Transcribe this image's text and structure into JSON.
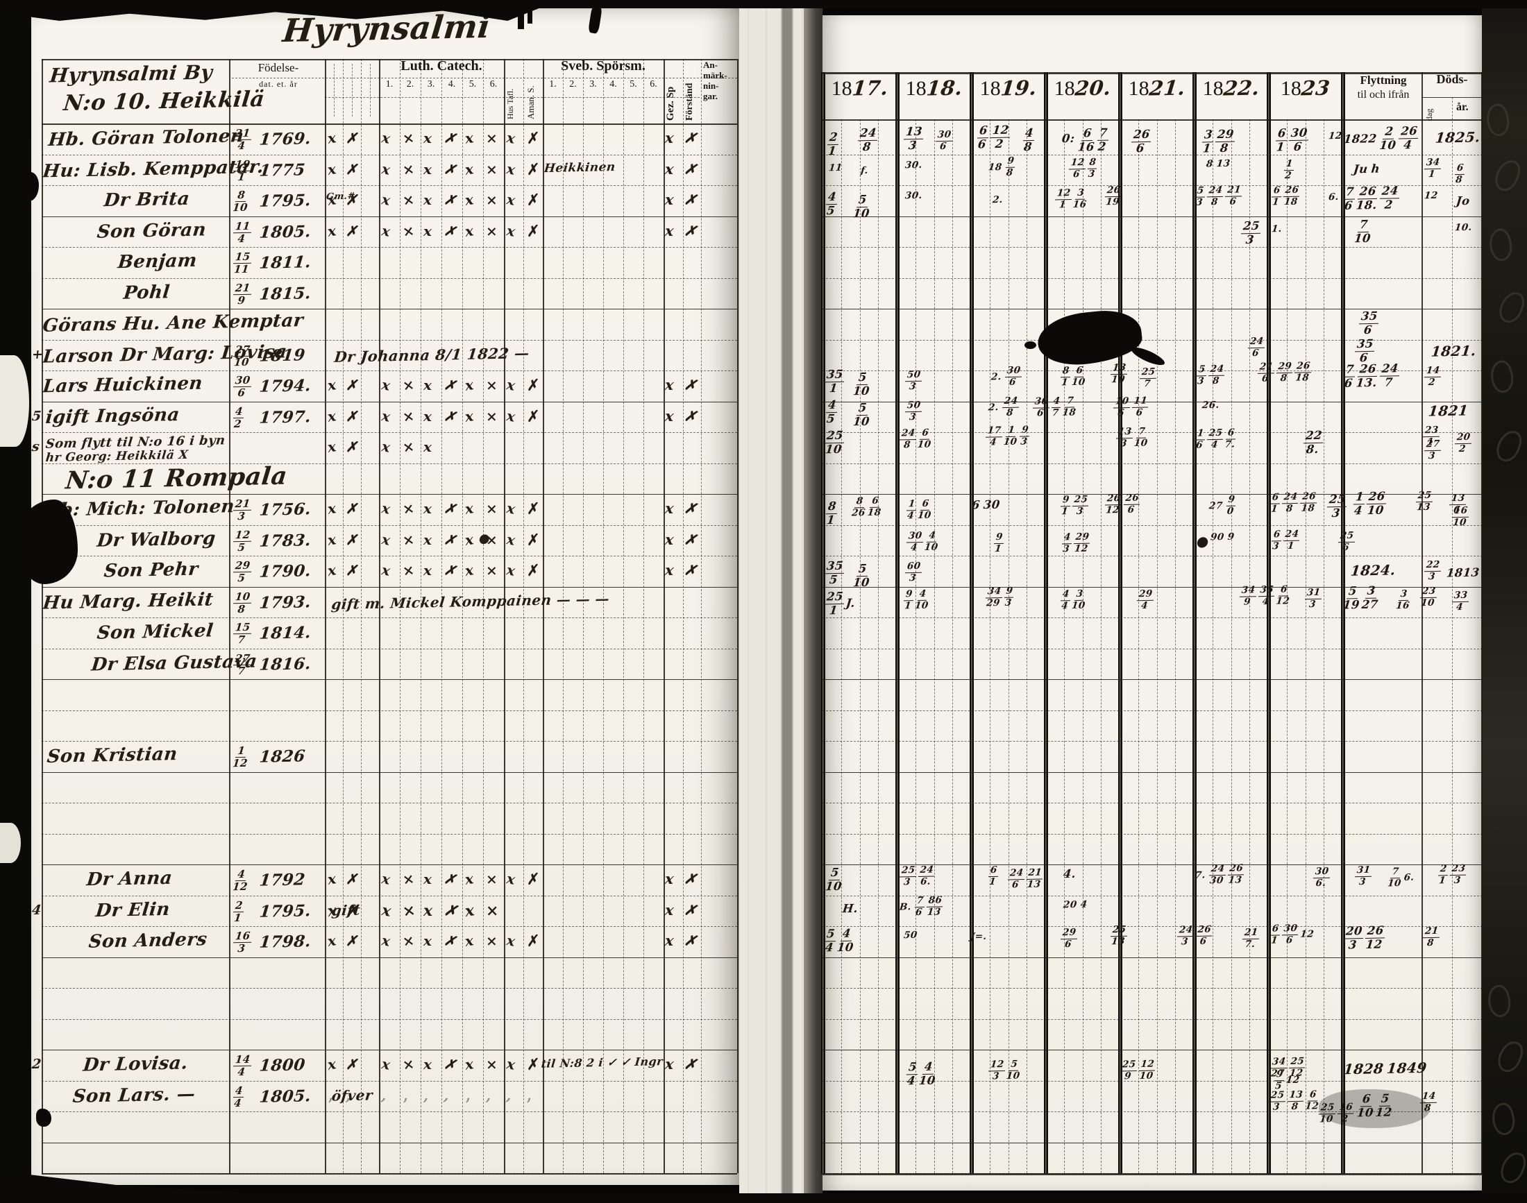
{
  "title": {
    "text": "Hyrynsalmi"
  },
  "left_page": {
    "village_line1": "Hyrynsalmi By",
    "village_line2": "N:o 10. Heikkilä",
    "headers": {
      "birth_line1": "Födelse-",
      "birth_line2": "dat. et. år",
      "luth": "Luth. Catech.",
      "luth_nums": [
        "1.",
        "2.",
        "3.",
        "4.",
        "5.",
        "6."
      ],
      "hus_tafl": "Hus Tafl.",
      "aman": "Aman. S.",
      "sveb": "Sveb. Spörsm.",
      "sveb_nums": [
        "1.",
        "2.",
        "3.",
        "4.",
        "5.",
        "6."
      ],
      "gez": "Gez. Sp",
      "forstand": "Förständ",
      "anm": [
        "An-",
        "märk-",
        "nin-",
        "gar."
      ]
    },
    "rows": [
      {
        "i": 0,
        "ix": 70,
        "name": "Hb. Göran Tolonen",
        "bt": "21",
        "bb": "4",
        "by": "1769.",
        "ck": 10,
        "gz": 1,
        "fs": 1
      },
      {
        "i": 1,
        "ix": 62,
        "name": "Hu: Lisb. Kemppatar.",
        "bt": "19",
        "bb": "1",
        "by": "1775",
        "ck": 10,
        "gz": 1,
        "fs": 1,
        "note": "Heikkinen",
        "nx": 784,
        "nf": 17
      },
      {
        "i": 2,
        "ix": 150,
        "name": "Dr Brita",
        "bt": "8",
        "bb": "10",
        "by": "1795.",
        "ck": 10,
        "gz": 1,
        "fs": 1,
        "note": "Gm.#",
        "nx": 470,
        "nf": 13
      },
      {
        "i": 3,
        "ix": 140,
        "name": "Son Göran",
        "bt": "11",
        "bb": "4",
        "by": "1805.",
        "ck": 10,
        "gz": 1,
        "fs": 1
      },
      {
        "i": 4,
        "ix": 170,
        "name": "Benjam",
        "bt": "15",
        "bb": "11",
        "by": "1811."
      },
      {
        "i": 5,
        "ix": 178,
        "name": "Pohl",
        "bt": "21",
        "bb": "9",
        "by": "1815."
      },
      {
        "i": 6,
        "ix": 62,
        "name": "Görans Hu. Ane Kemptar"
      },
      {
        "i": 7,
        "ix": 62,
        "m": "+",
        "name": "Larson Dr Marg: Lovisa",
        "bt": "27",
        "bb": "10",
        "by": "1819",
        "note": "Dr Johanna 8/1 1822 —",
        "nx": 482,
        "nf": 21
      },
      {
        "i": 8,
        "ix": 62,
        "name": "Lars Huickinen",
        "bt": "30",
        "bb": "6",
        "by": "1794.",
        "ck": 10,
        "gz": 1,
        "fs": 1
      },
      {
        "i": 9,
        "ix": 66,
        "m": "5",
        "name": "igift Ingsöna",
        "bt": "4",
        "bb": "2",
        "by": "1797.",
        "ck": 10,
        "gz": 1,
        "fs": 1
      },
      {
        "i": 10,
        "ix": 66,
        "m": "s",
        "name": "Som flytt til N:o 16 i byn",
        "name2": "hr Georg: Heikkilä X",
        "ck": 5,
        "small": 1
      },
      {
        "i": 11,
        "ix": 95,
        "header": "N:o 11 Rompala"
      },
      {
        "i": 12,
        "ix": 62,
        "name": "Hb: Mich: Tolonen",
        "bt": "21",
        "bb": "3",
        "by": "1756.",
        "ck": 10,
        "gz": 1,
        "fs": 1
      },
      {
        "i": 13,
        "ix": 140,
        "name": "Dr Walborg",
        "bt": "12",
        "bb": "5",
        "by": "1783.",
        "ck": 10,
        "gz": 1,
        "fs": 1,
        "note": "●",
        "nx": 690,
        "nf": 18
      },
      {
        "i": 14,
        "ix": 150,
        "m": "+",
        "name": "Son Pehr",
        "bt": "29",
        "bb": "5",
        "by": "1790.",
        "ck": 10,
        "gz": 1,
        "fs": 1
      },
      {
        "i": 15,
        "ix": 62,
        "name": "Hu Marg. Heikit",
        "bt": "10",
        "bb": "8",
        "by": "1793.",
        "note": "gift m. Mickel Komppainen — — —",
        "nx": 478,
        "nf": 20
      },
      {
        "i": 16,
        "ix": 140,
        "name": "Son Mickel",
        "bt": "15",
        "bb": "7",
        "by": "1814."
      },
      {
        "i": 17,
        "ix": 132,
        "name": "Dr Elsa Gustava",
        "bt": "27",
        "bb": "7",
        "by": "1816."
      },
      {
        "i": 20,
        "ix": 68,
        "name": "Son Kristian",
        "bt": "1",
        "bb": "12",
        "by": "1826"
      },
      {
        "i": 24,
        "ix": 125,
        "name": "Dr Anna",
        "bt": "4",
        "bb": "12",
        "by": "1792",
        "ck": 10,
        "gz": 1,
        "fs": 1
      },
      {
        "i": 25,
        "ix": 138,
        "m": "4",
        "name": "Dr Elin",
        "bt": "2",
        "bb": "1",
        "by": "1795.",
        "note": "gift",
        "nx": 478,
        "nf": 20,
        "ck": 8,
        "bold": 1,
        "gz": 1,
        "fs": 1
      },
      {
        "i": 26,
        "ix": 128,
        "name": "Son Anders",
        "bt": "16",
        "bb": "3",
        "by": "1798.",
        "ck": 10,
        "gz": 1,
        "fs": 1
      },
      {
        "i": 30,
        "ix": 120,
        "m": "2",
        "name": "Dr Lovisa.",
        "bt": "14",
        "bb": "4",
        "by": "1800",
        "ck": 10,
        "gz": 1,
        "fs": 1,
        "note": "til N:8 2 i ✓ ✓ Ingr",
        "nx": 780,
        "nf": 16
      },
      {
        "i": 31,
        "ix": 105,
        "name": "Son Lars. —",
        "bt": "4",
        "bb": "4",
        "by": "1805.",
        "note": "öfver",
        "nx": 478,
        "nf": 20,
        "ck": 10,
        "faint": 1
      }
    ]
  },
  "right_page": {
    "year_prefix": "18",
    "years": [
      "17.",
      "18.",
      "19.",
      "20.",
      "21.",
      "22.",
      "23"
    ],
    "flyttning_line1": "Flyttning",
    "flyttning_line2": "til och ifrån",
    "dods_title": "Döds-",
    "dods_dag": "dag",
    "dods_ar": "år.",
    "entries": [
      [
        "2/1",
        1192,
        190
      ],
      [
        "24/8",
        1236,
        184
      ],
      [
        "13/3",
        1302,
        182
      ],
      [
        "30/6",
        1348,
        188,
        "s"
      ],
      [
        "6/6 12/2",
        1408,
        180
      ],
      [
        "4/8",
        1474,
        184
      ],
      [
        "0:",
        1530,
        190
      ],
      [
        "6/16 7/2",
        1554,
        184
      ],
      [
        "26/6",
        1630,
        186
      ],
      [
        "3/1 29/8",
        1732,
        186
      ],
      [
        "6/1 30/6",
        1838,
        184
      ],
      [
        "12",
        1914,
        188,
        "s"
      ],
      [
        "1822 2/10 26/4",
        1936,
        182
      ],
      [
        "1825.",
        2068,
        186,
        "b"
      ],
      [
        "11",
        1194,
        234,
        "s"
      ],
      [
        "f.",
        1240,
        238,
        "s"
      ],
      [
        "30.",
        1304,
        230,
        "s"
      ],
      [
        "18 9/8",
        1424,
        226,
        "s"
      ],
      [
        "12/6 8/3",
        1540,
        228,
        "s"
      ],
      [
        "8 13",
        1738,
        228,
        "s"
      ],
      [
        "1/2",
        1850,
        230,
        "s"
      ],
      [
        "Ju h",
        1950,
        234
      ],
      [
        "34/1",
        2052,
        228,
        "s"
      ],
      [
        "6/8",
        2096,
        236,
        "s"
      ],
      [
        "4/5",
        1190,
        276
      ],
      [
        "5/10",
        1230,
        280
      ],
      [
        "30.",
        1304,
        274,
        "s"
      ],
      [
        "2.",
        1430,
        280,
        "s"
      ],
      [
        "12/1 3/16",
        1520,
        272,
        "s"
      ],
      [
        "26/19",
        1592,
        268,
        "s"
      ],
      [
        "5/3 24/8 21/6",
        1722,
        268,
        "s"
      ],
      [
        "6/1 26/18",
        1832,
        268,
        "s"
      ],
      [
        "6.",
        1914,
        276,
        "s"
      ],
      [
        "7/6 26/18. 24/2",
        1936,
        268
      ],
      [
        "12",
        2052,
        274,
        "s"
      ],
      [
        "Jo",
        2098,
        280
      ],
      [
        "25/3",
        1788,
        318
      ],
      [
        "1.",
        1832,
        322,
        "s"
      ],
      [
        "7/10",
        1952,
        316
      ],
      [
        "10.",
        2096,
        320,
        "s"
      ],
      [
        "35/6",
        1958,
        448
      ],
      [
        "24/6",
        1798,
        486,
        "s"
      ],
      [
        "35/6",
        1952,
        488
      ],
      [
        "1821.",
        2062,
        494,
        "b"
      ],
      [
        "35/1",
        1188,
        532
      ],
      [
        "5/10",
        1230,
        536
      ],
      [
        "50/3",
        1304,
        534,
        "s"
      ],
      [
        "2. 30/6",
        1428,
        528,
        "s"
      ],
      [
        "8/1 6/10",
        1528,
        528,
        "s"
      ],
      [
        "13/10",
        1600,
        524,
        "s"
      ],
      [
        "25/7",
        1642,
        530,
        "s"
      ],
      [
        "5/3 24/8",
        1724,
        526,
        "s"
      ],
      [
        "21/6 29/8 26/18",
        1812,
        522,
        "s"
      ],
      [
        "7/6 26/13. 24/7",
        1936,
        524
      ],
      [
        "14/2",
        2052,
        528,
        "s"
      ],
      [
        "4/5",
        1190,
        576
      ],
      [
        "5/10",
        1230,
        580
      ],
      [
        "50/3",
        1304,
        578,
        "s"
      ],
      [
        "2. 24/8",
        1424,
        572,
        "s"
      ],
      [
        "30/6 4/7 7/18",
        1488,
        572,
        "s"
      ],
      [
        "10/6 11/6",
        1604,
        572,
        "s"
      ],
      [
        "26.",
        1732,
        576,
        "s"
      ],
      [
        "1821",
        2058,
        580,
        "b"
      ],
      [
        "25/10",
        1188,
        620
      ],
      [
        "24/8 6/10",
        1296,
        618,
        "s"
      ],
      [
        "17/4 1/10 9/3",
        1420,
        614,
        "s"
      ],
      [
        "13/3 7/10",
        1608,
        616,
        "s"
      ],
      [
        "1/6 25/4 6/7.",
        1722,
        618,
        "s"
      ],
      [
        "22/8.",
        1878,
        620
      ],
      [
        "23/1",
        2050,
        614,
        "s"
      ],
      [
        "27/3",
        2052,
        634,
        "s"
      ],
      [
        "20/2",
        2096,
        624,
        "s"
      ],
      [
        "8/1",
        1190,
        722
      ],
      [
        "8/26 6/18",
        1228,
        716,
        "s"
      ],
      [
        "1/4 6/10",
        1306,
        720,
        "s"
      ],
      [
        "6 30",
        1400,
        718
      ],
      [
        "9/1 25/3",
        1528,
        714,
        "s"
      ],
      [
        "26/12 26/6",
        1592,
        712,
        "s"
      ],
      [
        "27 9/0",
        1742,
        714,
        "s"
      ],
      [
        "6/1 24/8 26/18",
        1830,
        710,
        "s"
      ],
      [
        "25/3",
        1912,
        712
      ],
      [
        "1/4 26/10",
        1950,
        708
      ],
      [
        "25/13",
        2040,
        708,
        "s"
      ],
      [
        "13/6",
        2088,
        712,
        "s"
      ],
      [
        "16/10",
        2092,
        730,
        "s"
      ],
      [
        "●",
        1724,
        768,
        "b"
      ],
      [
        "30/4 4/10",
        1306,
        766,
        "s"
      ],
      [
        "9/1",
        1432,
        768,
        "s"
      ],
      [
        "4/3 29/12",
        1530,
        768,
        "s"
      ],
      [
        "90 9",
        1744,
        766,
        "s"
      ],
      [
        "6/3 24/1",
        1832,
        764,
        "s"
      ],
      [
        "25/6",
        1928,
        766,
        "s"
      ],
      [
        "35/5",
        1188,
        808
      ],
      [
        "5/10",
        1230,
        812
      ],
      [
        "60/3",
        1304,
        810,
        "s"
      ],
      [
        "1824.",
        1946,
        810,
        "b"
      ],
      [
        "22/3",
        2052,
        808,
        "s"
      ],
      [
        "1813",
        2084,
        816
      ],
      [
        "25/1 J.",
        1188,
        852
      ],
      [
        "9/1 4/10",
        1302,
        850,
        "s"
      ],
      [
        "34/29 9/3",
        1420,
        846,
        "s"
      ],
      [
        "4/4 3/10",
        1528,
        850,
        "s"
      ],
      [
        "29/4",
        1638,
        850,
        "s"
      ],
      [
        "34/9 35/4 6/12",
        1786,
        844,
        "s"
      ],
      [
        "31/3",
        1880,
        848,
        "s"
      ],
      [
        "5/19 3/27",
        1936,
        844
      ],
      [
        "3/16",
        2012,
        850,
        "s"
      ],
      [
        "23/10",
        2046,
        846,
        "s"
      ],
      [
        "33/4",
        2092,
        852,
        "s"
      ],
      [
        "5/10",
        1190,
        1250
      ],
      [
        "25/3 24/6.",
        1296,
        1248,
        "s"
      ],
      [
        "6/1",
        1424,
        1248,
        "s"
      ],
      [
        "24/6 21/13",
        1452,
        1252,
        "s"
      ],
      [
        "4.",
        1532,
        1250
      ],
      [
        "7. 24/30 26/13",
        1722,
        1246,
        "s"
      ],
      [
        "30/6.",
        1892,
        1250,
        "s"
      ],
      [
        "31/3",
        1952,
        1248,
        "s"
      ],
      [
        "7/10 6.",
        2000,
        1250,
        "s"
      ],
      [
        "2/1 23/3",
        2072,
        1246,
        "s"
      ],
      [
        "H.",
        1214,
        1300
      ],
      [
        "B. 7/6 86/13",
        1296,
        1292,
        "s"
      ],
      [
        "20 4",
        1532,
        1296,
        "s"
      ],
      [
        "5/4 4/10",
        1188,
        1338
      ],
      [
        "50",
        1302,
        1340,
        "s"
      ],
      [
        "J=.",
        1398,
        1342,
        "s"
      ],
      [
        "29/6",
        1528,
        1338,
        "s"
      ],
      [
        "25/13",
        1600,
        1334,
        "s"
      ],
      [
        "24/3 26/6",
        1696,
        1334,
        "s"
      ],
      [
        "21/7.",
        1790,
        1338,
        "s"
      ],
      [
        "6/1 30/6 12",
        1830,
        1332,
        "s"
      ],
      [
        "20/3 26/12",
        1936,
        1334
      ],
      [
        "21/8",
        2050,
        1336,
        "s"
      ],
      [
        "5/4 4/10",
        1306,
        1530
      ],
      [
        "12/3 5/10",
        1424,
        1528,
        "s"
      ],
      [
        "25/9 12/10",
        1614,
        1528,
        "s"
      ],
      [
        "34/27 25/12",
        1830,
        1524,
        "s"
      ],
      [
        "9/5 12",
        1836,
        1542,
        "s"
      ],
      [
        "1828 1849",
        1936,
        1528,
        "b"
      ],
      [
        "25/3 13/8 6/12",
        1828,
        1572,
        "s"
      ],
      [
        "25/10 16/2",
        1900,
        1590,
        "s"
      ],
      [
        "6/10 5/12",
        1956,
        1576
      ],
      [
        "14/8",
        2046,
        1574,
        "s"
      ]
    ]
  }
}
